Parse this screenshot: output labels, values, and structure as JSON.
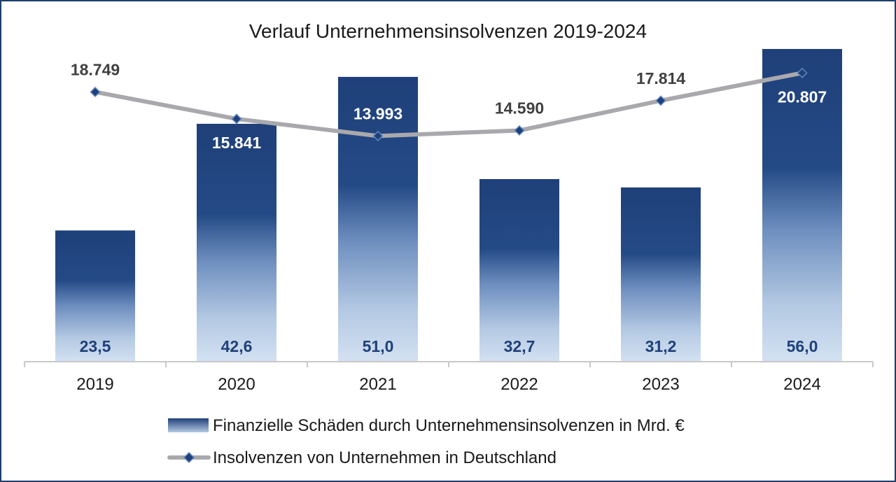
{
  "chart_data": {
    "type": "bar",
    "title": "Verlauf Unternehmensinsolvenzen 2019-2024",
    "categories": [
      "2019",
      "2020",
      "2021",
      "2022",
      "2023",
      "2024"
    ],
    "series": [
      {
        "name": "Finanzielle Schäden durch Unternehmensinsolvenzen in Mrd. €",
        "type": "bar",
        "values": [
          23.5,
          42.6,
          51.0,
          32.7,
          31.2,
          56.0
        ],
        "labels": [
          "23,5",
          "42,6",
          "51,0",
          "32,7",
          "31,2",
          "56,0"
        ],
        "color": "#1f4079"
      },
      {
        "name": "Insolvenzen von Unternehmen in Deutschland",
        "type": "line",
        "values": [
          18749,
          15841,
          13993,
          14590,
          17814,
          20807
        ],
        "labels": [
          "18.749",
          "15.841",
          "13.993",
          "14.590",
          "17.814",
          "20.807"
        ],
        "color": "#a9a9ad",
        "marker_color": "#1f4079"
      }
    ],
    "bar_ylim": [
      0,
      56.5
    ],
    "line_ylim": [
      -10400,
      23700
    ],
    "legend_position": "bottom",
    "grid": false
  }
}
